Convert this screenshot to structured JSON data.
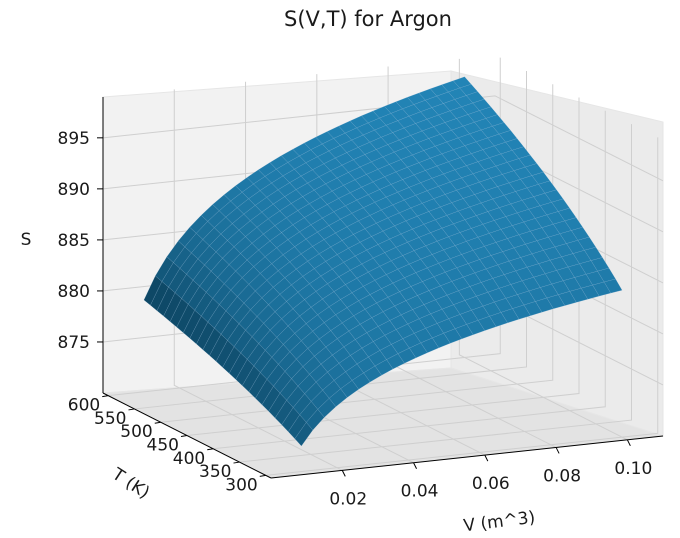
{
  "chart_data": {
    "type": "surface",
    "title": "S(V,T) for Argon",
    "xlabel": "V (m^3)",
    "ylabel": "T (K)",
    "zlabel": "S",
    "xlim": [
      0.0,
      0.11
    ],
    "ylim": [
      290,
      610
    ],
    "zlim": [
      870,
      899
    ],
    "x_ticks": [
      "0.02",
      "0.04",
      "0.06",
      "0.08",
      "0.10"
    ],
    "y_ticks": [
      "300",
      "350",
      "400",
      "450",
      "500",
      "550",
      "600"
    ],
    "z_ticks": [
      "875",
      "880",
      "885",
      "890",
      "895"
    ],
    "surface": {
      "v_range": [
        0.01,
        0.1
      ],
      "t_range": [
        300,
        600
      ],
      "corners": [
        {
          "V": 0.01,
          "T": 300,
          "S": 872.5
        },
        {
          "V": 0.01,
          "T": 600,
          "S": 879.0
        },
        {
          "V": 0.1,
          "T": 300,
          "S": 884.4
        },
        {
          "V": 0.1,
          "T": 600,
          "S": 897.5
        }
      ]
    },
    "grid": true,
    "surface_color": "#1f77b4"
  }
}
